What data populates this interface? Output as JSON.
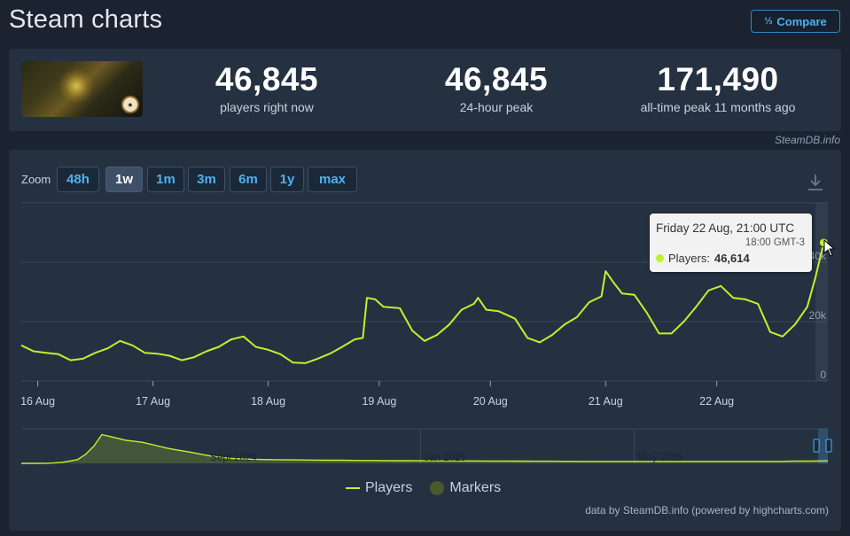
{
  "page": {
    "title": "Steam charts"
  },
  "compare_button": {
    "label": "Compare"
  },
  "stats": [
    {
      "value": "46,845",
      "label": "players right now"
    },
    {
      "value": "46,845",
      "label": "24-hour peak"
    },
    {
      "value": "171,490",
      "label": "all-time peak 11 months ago"
    }
  ],
  "watermark": "SteamDB.info",
  "zoom": {
    "label": "Zoom",
    "options": [
      "48h",
      "1w",
      "1m",
      "3m",
      "6m",
      "1y",
      "max"
    ],
    "selected": "1w"
  },
  "tooltip": {
    "date": "Friday 22 Aug, 21:00 UTC",
    "local_time": "18:00 GMT-3",
    "series_label": "Players:",
    "value": "46,614"
  },
  "legend": {
    "players": "Players",
    "markers": "Markers"
  },
  "credits": "data by SteamDB.info (powered by highcharts.com)",
  "colors": {
    "series": "#c3f02e",
    "accent": "#4fb1f0",
    "panel": "#253141",
    "background": "#1b2331"
  },
  "chart_data": [
    {
      "type": "line",
      "name": "main",
      "x_labels": [
        "16 Aug",
        "17 Aug",
        "18 Aug",
        "19 Aug",
        "20 Aug",
        "21 Aug",
        "22 Aug"
      ],
      "y_ticks": [
        "0",
        "20k",
        "40k"
      ],
      "ylim": [
        0,
        60000
      ],
      "series": [
        {
          "name": "Players",
          "points": [
            [
              0,
              12000
            ],
            [
              1.5,
              10000
            ],
            [
              3,
              9500
            ],
            [
              4.5,
              9000
            ],
            [
              6,
              7000
            ],
            [
              7.5,
              7500
            ],
            [
              9,
              9500
            ],
            [
              10.5,
              11000
            ],
            [
              12,
              13500
            ],
            [
              13.5,
              12000
            ],
            [
              15,
              9500
            ],
            [
              16.5,
              9200
            ],
            [
              18,
              8500
            ],
            [
              19.5,
              7000
            ],
            [
              21,
              8000
            ],
            [
              22.5,
              10000
            ],
            [
              24,
              11500
            ],
            [
              25.5,
              14000
            ],
            [
              27,
              15000
            ],
            [
              28.5,
              11500
            ],
            [
              30,
              10500
            ],
            [
              31.5,
              9000
            ],
            [
              33,
              6200
            ],
            [
              34.5,
              6000
            ],
            [
              36,
              7500
            ],
            [
              37.5,
              9200
            ],
            [
              39,
              11500
            ],
            [
              40.5,
              14000
            ],
            [
              41.5,
              14500
            ],
            [
              42,
              28000
            ],
            [
              43,
              27500
            ],
            [
              44,
              25000
            ],
            [
              46,
              24500
            ],
            [
              47.5,
              17000
            ],
            [
              49,
              13500
            ],
            [
              50.5,
              15500
            ],
            [
              52,
              19000
            ],
            [
              53.5,
              24000
            ],
            [
              55,
              26000
            ],
            [
              55.5,
              28000
            ],
            [
              56.5,
              24000
            ],
            [
              58,
              23500
            ],
            [
              60,
              21000
            ],
            [
              61.5,
              14500
            ],
            [
              63,
              13000
            ],
            [
              64.5,
              15500
            ],
            [
              66,
              19000
            ],
            [
              67.5,
              21500
            ],
            [
              69,
              26500
            ],
            [
              70.5,
              28500
            ],
            [
              71,
              37000
            ],
            [
              72,
              33000
            ],
            [
              73,
              29500
            ],
            [
              74.5,
              29000
            ],
            [
              76,
              23000
            ],
            [
              77.5,
              16000
            ],
            [
              79,
              16000
            ],
            [
              80.5,
              20000
            ],
            [
              82,
              25000
            ],
            [
              83.5,
              30500
            ],
            [
              85,
              32000
            ],
            [
              86.5,
              28000
            ],
            [
              88,
              27500
            ],
            [
              89.5,
              26000
            ],
            [
              91,
              16500
            ],
            [
              92.5,
              15000
            ],
            [
              94,
              19000
            ],
            [
              95.5,
              25000
            ],
            [
              96.5,
              35000
            ],
            [
              97.5,
              46614
            ],
            [
              98,
              46845
            ]
          ]
        }
      ],
      "tooltip_point": [
        97.5,
        46614
      ]
    },
    {
      "type": "area",
      "name": "navigator",
      "x_labels": [
        "Sept 2024",
        "Jan 2025",
        "May 2025"
      ],
      "ylim": [
        0,
        180000
      ],
      "series": [
        {
          "name": "Players",
          "points": [
            [
              0,
              0
            ],
            [
              2,
              0
            ],
            [
              3,
              500
            ],
            [
              4,
              2000
            ],
            [
              5,
              5000
            ],
            [
              6,
              12000
            ],
            [
              7,
              20000
            ],
            [
              8,
              48000
            ],
            [
              9,
              90000
            ],
            [
              10,
              150000
            ],
            [
              11,
              140000
            ],
            [
              12,
              130000
            ],
            [
              13,
              120000
            ],
            [
              14,
              115000
            ],
            [
              15,
              110000
            ],
            [
              16,
              100000
            ],
            [
              17,
              90000
            ],
            [
              18,
              80000
            ],
            [
              19,
              72000
            ],
            [
              20,
              65000
            ],
            [
              21,
              58000
            ],
            [
              22,
              50000
            ],
            [
              23,
              42000
            ],
            [
              24,
              35000
            ],
            [
              25,
              30000
            ],
            [
              26,
              26000
            ],
            [
              28,
              22000
            ],
            [
              30,
              20000
            ],
            [
              32,
              19000
            ],
            [
              34,
              18000
            ],
            [
              36,
              17000
            ],
            [
              38,
              16000
            ],
            [
              40,
              16000
            ],
            [
              42,
              15000
            ],
            [
              44,
              15000
            ],
            [
              46,
              14000
            ],
            [
              48,
              14000
            ],
            [
              50,
              13500
            ],
            [
              52,
              13000
            ],
            [
              54,
              13000
            ],
            [
              56,
              12500
            ],
            [
              58,
              12000
            ],
            [
              60,
              12000
            ],
            [
              62,
              11500
            ],
            [
              64,
              11000
            ],
            [
              66,
              11000
            ],
            [
              68,
              10500
            ],
            [
              70,
              10000
            ],
            [
              72,
              10000
            ],
            [
              74,
              10000
            ],
            [
              76,
              10000
            ],
            [
              78,
              10000
            ],
            [
              80,
              10000
            ],
            [
              82,
              10000
            ],
            [
              84,
              10000
            ],
            [
              86,
              10000
            ],
            [
              88,
              10000
            ],
            [
              90,
              10000
            ],
            [
              92,
              10000
            ],
            [
              94,
              10000
            ],
            [
              96,
              12000
            ],
            [
              98,
              12000
            ],
            [
              100,
              14000
            ]
          ]
        }
      ]
    }
  ]
}
